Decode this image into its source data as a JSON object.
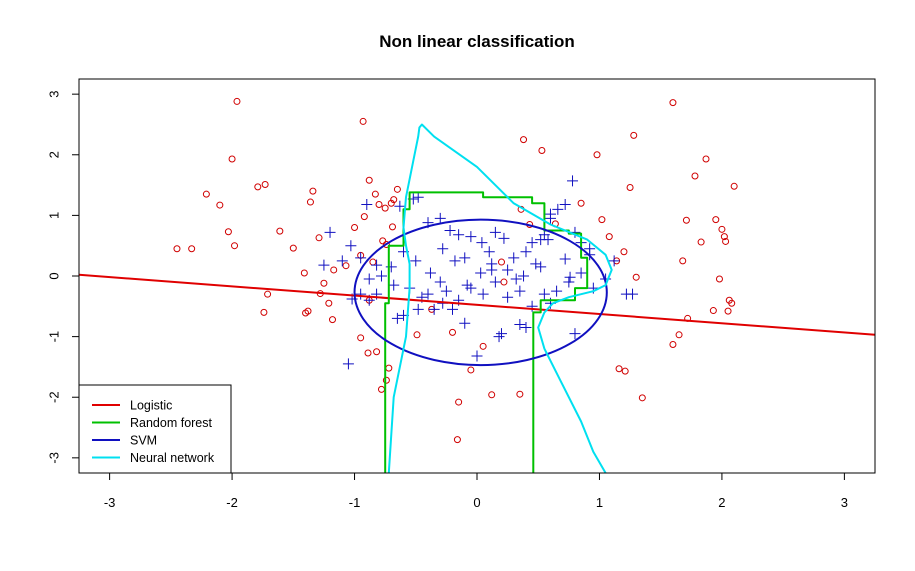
{
  "chart_data": {
    "type": "scatter",
    "title": "Non linear classification",
    "xlabel": "",
    "ylabel": "",
    "xlim": [
      -3.25,
      3.25
    ],
    "ylim": [
      -3.25,
      3.25
    ],
    "xticks": [
      "-3",
      "-2",
      "-1",
      "0",
      "1",
      "2",
      "3"
    ],
    "yticks": [
      "-3",
      "-2",
      "-1",
      "0",
      "1",
      "2",
      "3"
    ],
    "grid": false,
    "legend": {
      "placement": "bottom-left",
      "entries": [
        {
          "label": "Logistic",
          "color": "#e00000"
        },
        {
          "label": "Random forest",
          "color": "#00c000"
        },
        {
          "label": "SVM",
          "color": "#1010c0"
        },
        {
          "label": "Neural network",
          "color": "#00e0f0"
        }
      ]
    },
    "points": {
      "circles": {
        "color": "#d00000",
        "x": [
          -1.96,
          -2.0,
          -2.21,
          -2.1,
          -2.45,
          -2.33,
          -1.79,
          -1.73,
          -1.61,
          -1.5,
          -1.34,
          -1.36,
          -1.29,
          -2.03,
          -1.98,
          -1.71,
          -1.74,
          -1.41,
          -1.4,
          -1.38,
          -1.28,
          -1.21,
          -1.25,
          -1.17,
          -1.07,
          -1.0,
          -0.93,
          -0.88,
          -0.83,
          -0.75,
          -0.74,
          -0.95,
          -0.85,
          -1.18,
          -0.95,
          -0.89,
          -0.82,
          -0.72,
          -0.49,
          -0.37,
          -0.2,
          -0.15,
          0.12,
          0.35,
          0.38,
          0.53,
          0.36,
          0.43,
          0.64,
          0.85,
          0.98,
          1.02,
          1.08,
          1.14,
          1.2,
          1.28,
          1.25,
          1.6,
          1.78,
          1.87,
          1.95,
          2.02,
          2.1,
          1.65,
          1.72,
          2.0,
          2.03,
          2.06,
          2.05,
          2.08,
          1.71,
          1.83,
          1.93,
          1.98,
          1.68,
          1.6,
          1.21,
          1.16,
          1.35,
          1.3,
          0.2,
          0.22,
          0.05,
          -0.05,
          -0.16,
          -0.65,
          -0.68,
          -0.69,
          -0.77,
          -0.74,
          -0.78,
          -0.92,
          -0.8,
          -0.88,
          -0.7
        ],
        "y": [
          2.88,
          1.93,
          1.35,
          1.17,
          0.45,
          0.45,
          1.47,
          1.51,
          0.74,
          0.46,
          1.4,
          1.22,
          0.63,
          0.73,
          0.5,
          -0.3,
          -0.6,
          0.05,
          -0.61,
          -0.58,
          -0.29,
          -0.45,
          -0.12,
          0.1,
          0.17,
          0.8,
          2.55,
          1.58,
          1.35,
          1.12,
          0.52,
          0.34,
          0.23,
          -0.72,
          -1.02,
          -1.27,
          -1.25,
          -1.52,
          -0.97,
          -0.55,
          -0.93,
          -2.08,
          -1.96,
          -1.95,
          2.25,
          2.07,
          1.1,
          0.85,
          0.86,
          1.2,
          2.0,
          0.93,
          0.65,
          0.25,
          0.4,
          2.32,
          1.46,
          2.86,
          1.65,
          1.93,
          0.93,
          0.65,
          1.48,
          -0.97,
          -0.7,
          0.77,
          0.57,
          -0.4,
          -0.58,
          -0.45,
          0.92,
          0.56,
          -0.57,
          -0.05,
          0.25,
          -1.13,
          -1.57,
          -1.53,
          -2.01,
          -0.02,
          0.23,
          -0.1,
          -1.16,
          -1.55,
          -2.7,
          1.43,
          1.26,
          0.81,
          0.58,
          -1.72,
          -1.87,
          0.98,
          1.18,
          -0.4,
          1.2
        ]
      },
      "crosses": {
        "color": "#1010c0",
        "x": [
          -1.2,
          -1.03,
          -0.95,
          -0.82,
          -0.9,
          -0.63,
          -0.52,
          -0.48,
          -0.4,
          -0.3,
          -0.22,
          -0.15,
          -0.05,
          0.04,
          0.1,
          0.15,
          0.22,
          0.3,
          0.4,
          0.45,
          0.55,
          0.6,
          0.66,
          0.72,
          0.8,
          0.85,
          0.92,
          0.78,
          0.6,
          0.58,
          0.48,
          0.38,
          0.25,
          0.12,
          0.03,
          -0.1,
          -0.18,
          -0.28,
          -0.38,
          -0.5,
          -0.6,
          -0.7,
          -0.78,
          -0.88,
          -0.95,
          -1.02,
          -1.1,
          -1.25,
          -0.55,
          -0.65,
          -0.45,
          -0.35,
          -0.25,
          -0.15,
          -0.05,
          0.05,
          0.15,
          0.25,
          0.35,
          0.45,
          0.55,
          0.65,
          0.75,
          0.85,
          0.95,
          1.05,
          1.12,
          0.92,
          0.72,
          0.52,
          0.32,
          0.12,
          -0.08,
          -0.28,
          -0.48,
          -0.68,
          -0.88,
          -0.6,
          -0.4,
          -0.2,
          0.0,
          0.2,
          0.4,
          0.6,
          0.8,
          -1.05,
          -0.82,
          -0.3,
          0.18,
          0.52,
          0.76,
          1.27,
          1.22,
          0.35,
          -0.1
        ],
        "y": [
          0.72,
          0.5,
          0.3,
          0.18,
          1.18,
          1.15,
          1.27,
          1.3,
          0.88,
          0.95,
          0.75,
          0.68,
          0.65,
          0.55,
          0.4,
          0.72,
          0.62,
          0.3,
          0.4,
          0.55,
          0.68,
          0.95,
          1.1,
          1.18,
          0.72,
          0.55,
          0.45,
          1.57,
          1.02,
          0.6,
          0.2,
          0.0,
          0.1,
          0.2,
          0.05,
          0.3,
          0.25,
          0.45,
          0.05,
          0.25,
          0.4,
          0.15,
          0.0,
          -0.05,
          -0.3,
          -0.38,
          0.25,
          0.18,
          -0.2,
          -0.7,
          -0.35,
          -0.55,
          -0.25,
          -0.4,
          -0.2,
          -0.3,
          -0.1,
          -0.35,
          -0.25,
          -0.5,
          -0.3,
          -0.25,
          -0.1,
          0.05,
          -0.2,
          -0.05,
          0.25,
          0.35,
          0.28,
          0.15,
          -0.05,
          0.1,
          -0.15,
          -0.45,
          -0.55,
          -0.15,
          -0.4,
          -0.65,
          -0.3,
          -0.55,
          -1.32,
          -0.95,
          -0.85,
          -0.45,
          -0.95,
          -1.45,
          -0.3,
          -0.1,
          -1.0,
          0.6,
          -0.02,
          -0.3,
          -0.3,
          -0.8,
          -0.78
        ]
      }
    },
    "boundaries": [
      {
        "name": "Logistic",
        "color": "#e00000",
        "x": [
          -3.25,
          3.25
        ],
        "y": [
          0.02,
          -0.97
        ]
      },
      {
        "name": "Random forest",
        "color": "#00c000",
        "x": [
          -0.75,
          -0.75,
          -0.72,
          -0.72,
          -0.6,
          -0.6,
          -0.55,
          -0.55,
          0.05,
          0.05,
          0.45,
          0.45,
          0.55,
          0.55,
          0.75,
          0.75,
          0.85,
          0.85,
          0.9,
          0.9,
          0.8,
          0.8,
          0.52,
          0.52,
          0.46,
          0.46
        ],
        "y": [
          -3.25,
          -0.45,
          -0.45,
          0.5,
          0.5,
          1.1,
          1.1,
          1.38,
          1.38,
          1.3,
          1.3,
          1.2,
          1.2,
          0.75,
          0.75,
          0.7,
          0.7,
          0.3,
          0.3,
          -0.2,
          -0.2,
          -0.4,
          -0.4,
          -0.6,
          -0.6,
          -3.25
        ]
      },
      {
        "name": "SVM",
        "color": "#1010c0",
        "ellipse": {
          "cx": 0.03,
          "cy": -0.27,
          "rx": 1.03,
          "ry": 1.2
        }
      },
      {
        "name": "Neural network",
        "color": "#00e0f0",
        "x": [
          -0.72,
          -0.68,
          -0.58,
          -0.55,
          -0.55,
          -0.58,
          -0.6,
          -0.58,
          -0.52,
          -0.48,
          -0.47,
          -0.45,
          -0.35,
          0.0,
          0.3,
          0.6,
          0.9,
          1.05,
          1.1,
          1.05,
          0.95,
          0.75,
          0.62,
          0.55,
          0.5,
          0.55,
          0.7,
          0.85,
          0.95,
          1.05
        ],
        "y": [
          -3.25,
          -2.0,
          -1.0,
          -0.2,
          0.2,
          0.5,
          0.8,
          1.3,
          1.9,
          2.3,
          2.45,
          2.5,
          2.3,
          1.8,
          1.2,
          0.85,
          0.6,
          0.35,
          0.1,
          -0.15,
          -0.25,
          -0.35,
          -0.45,
          -0.6,
          -0.85,
          -1.2,
          -1.8,
          -2.4,
          -2.9,
          -3.25
        ]
      }
    ]
  }
}
